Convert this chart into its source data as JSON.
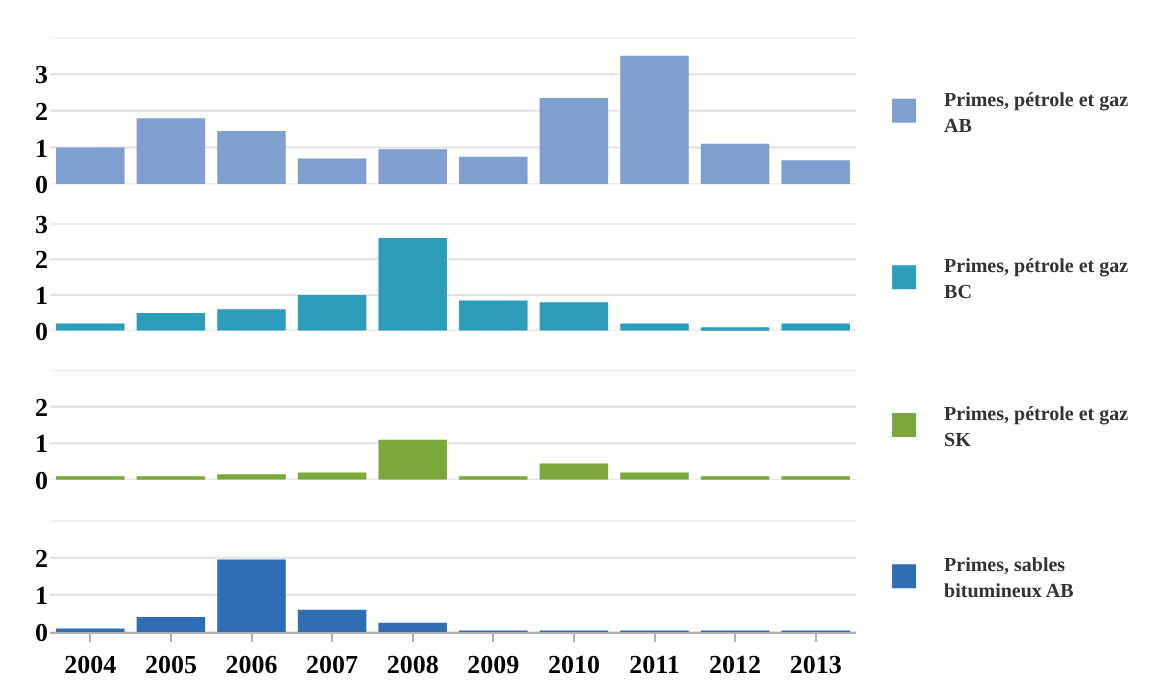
{
  "chart_data": [
    {
      "type": "bar",
      "categories": [
        "2004",
        "2005",
        "2006",
        "2007",
        "2008",
        "2009",
        "2010",
        "2011",
        "2012",
        "2013"
      ],
      "series": [
        {
          "name": "Primes, pétrole et gaz AB",
          "color": "#7f9fd0",
          "values": [
            1.0,
            1.8,
            1.45,
            0.7,
            0.95,
            0.75,
            2.35,
            3.5,
            1.1,
            0.65
          ]
        }
      ],
      "ylim": [
        0,
        4
      ],
      "yticks": [
        0,
        1,
        2,
        3
      ],
      "grid": "y",
      "legend": "right",
      "tick_labels": "y"
    },
    {
      "type": "bar",
      "categories": [
        "2004",
        "2005",
        "2006",
        "2007",
        "2008",
        "2009",
        "2010",
        "2011",
        "2012",
        "2013"
      ],
      "series": [
        {
          "name": "Primes, pétrole et gaz BC",
          "color": "#2e9dbb",
          "values": [
            0.2,
            0.5,
            0.6,
            1.0,
            2.6,
            0.85,
            0.8,
            0.2,
            0.1,
            0.2
          ]
        }
      ],
      "ylim": [
        0,
        3
      ],
      "yticks": [
        0,
        1,
        2,
        3
      ],
      "grid": "y",
      "legend": "right",
      "tick_labels": "y"
    },
    {
      "type": "bar",
      "categories": [
        "2004",
        "2005",
        "2006",
        "2007",
        "2008",
        "2009",
        "2010",
        "2011",
        "2012",
        "2013"
      ],
      "series": [
        {
          "name": "Primes, pétrole et gaz SK",
          "color": "#7aa83a",
          "values": [
            0.05,
            0.1,
            0.15,
            0.2,
            1.1,
            0.1,
            0.45,
            0.2,
            0.1,
            0.05
          ]
        }
      ],
      "ylim": [
        0,
        3
      ],
      "yticks": [
        0,
        1,
        2
      ],
      "grid": "y",
      "legend": "right",
      "tick_labels": "y"
    },
    {
      "type": "bar",
      "categories": [
        "2004",
        "2005",
        "2006",
        "2007",
        "2008",
        "2009",
        "2010",
        "2011",
        "2012",
        "2013"
      ],
      "series": [
        {
          "name": "Primes, sables bitumineux AB",
          "color": "#2f6db5",
          "values": [
            0.05,
            0.4,
            1.95,
            0.6,
            0.25,
            0.02,
            0.02,
            0.02,
            0.02,
            0.02
          ]
        }
      ],
      "ylim": [
        0,
        3
      ],
      "yticks": [
        0,
        1,
        2
      ],
      "grid": "y",
      "legend": "right"
    }
  ]
}
